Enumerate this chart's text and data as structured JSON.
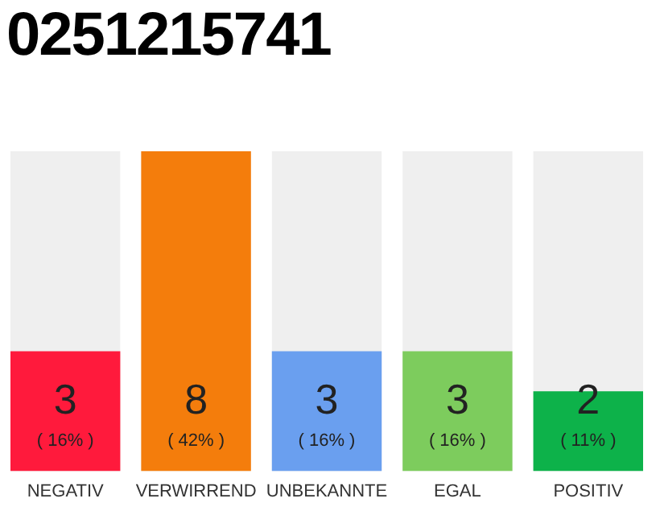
{
  "chart_data": {
    "type": "bar",
    "title": "0251215741",
    "categories": [
      "NEGATIV",
      "VERWIRREND",
      "UNBEKANNTE",
      "EGAL",
      "POSITIV"
    ],
    "values": [
      3,
      8,
      3,
      3,
      2
    ],
    "colors": [
      "#ff1a3c",
      "#f47d0c",
      "#6a9fef",
      "#7dcc5d",
      "#0db24a"
    ],
    "value_labels": [
      "3\n( 16% )",
      "8\n( 42% )",
      "3\n( 16% )",
      "3\n( 16% )",
      "2\n( 11% )"
    ],
    "tick_labels": "x",
    "grid": false,
    "legend": false
  }
}
